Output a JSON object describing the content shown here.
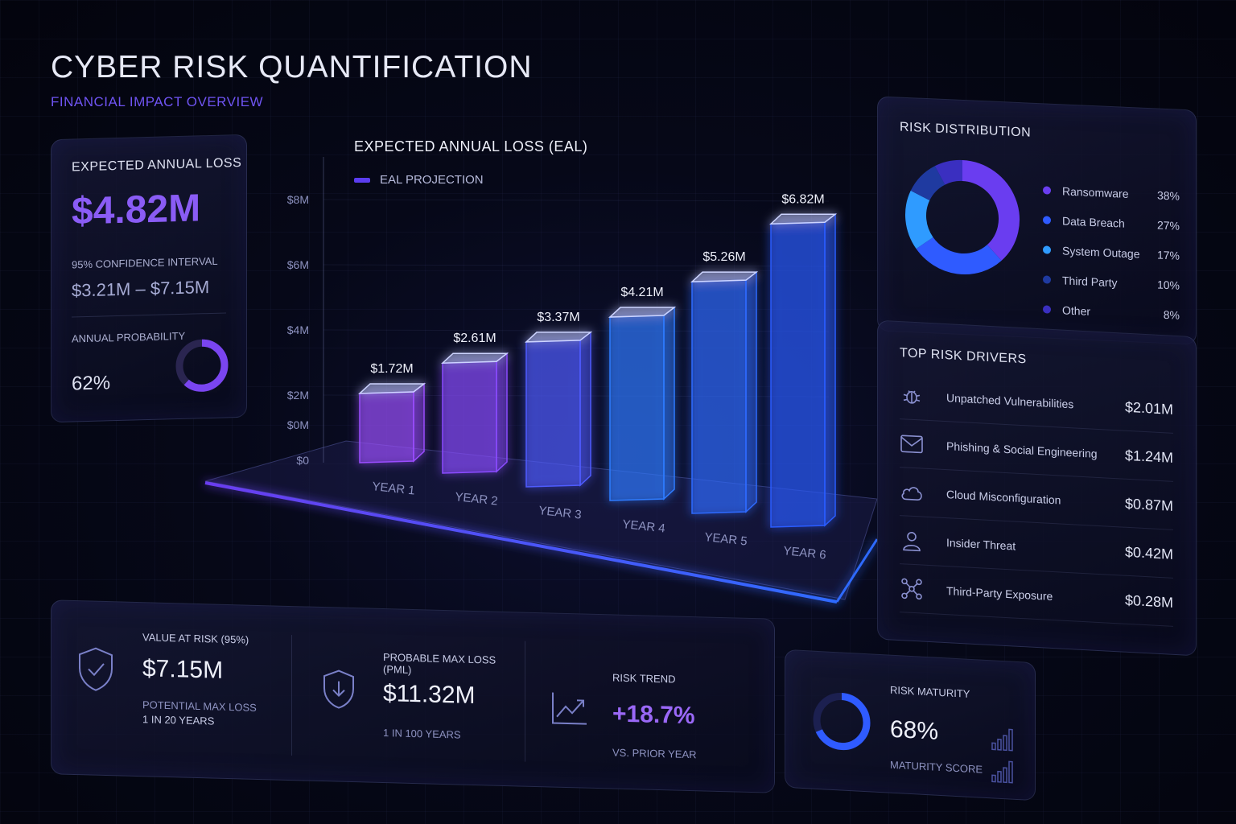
{
  "header": {
    "title": "CYBER RISK QUANTIFICATION",
    "subtitle": "FINANCIAL IMPACT OVERVIEW"
  },
  "colors": {
    "accent_purple": "#8a5cf5",
    "accent_blue": "#2f6bff",
    "accent_cyan": "#35a9ff",
    "background": "#060818"
  },
  "eal_card": {
    "label": "EXPECTED ANNUAL LOSS",
    "value": "$4.82M",
    "ci_label": "95% CONFIDENCE INTERVAL",
    "ci_value": "$3.21M – $7.15M",
    "probability_label": "ANNUAL PROBABILITY",
    "probability_value": "62%",
    "probability": 0.62
  },
  "chart_data": {
    "type": "bar",
    "title": "EXPECTED ANNUAL LOSS (EAL)",
    "series": [
      {
        "name": "EAL PROJECTION",
        "values": [
          1.72,
          2.61,
          3.37,
          4.21,
          5.26,
          6.82
        ]
      }
    ],
    "categories": [
      "YEAR 1",
      "YEAR 2",
      "YEAR 3",
      "YEAR 4",
      "YEAR 5",
      "YEAR 6"
    ],
    "data_labels": [
      "$1.72M",
      "$2.61M",
      "$3.37M",
      "$4.21M",
      "$5.26M",
      "$6.82M"
    ],
    "y_ticks": [
      "$0",
      "$0M",
      "$2M",
      "$4M",
      "$6M",
      "$8M"
    ],
    "y_tick_values": [
      0,
      0,
      2,
      4,
      6,
      8
    ],
    "ylim": [
      0,
      8
    ],
    "unit": "$M",
    "colors": [
      "#9b4dff",
      "#8a4bff",
      "#4f5bff",
      "#2f7bff",
      "#2f6bff",
      "#2a5cff"
    ]
  },
  "risk_distribution": {
    "label": "RISK DISTRIBUTION",
    "items": [
      {
        "name": "Ransomware",
        "pct": "38%",
        "value": 38,
        "color": "#6a3df0"
      },
      {
        "name": "Data Breach",
        "pct": "27%",
        "value": 27,
        "color": "#2f5bff"
      },
      {
        "name": "System Outage",
        "pct": "17%",
        "value": 17,
        "color": "#2f9bff"
      },
      {
        "name": "Third Party",
        "pct": "10%",
        "value": 10,
        "color": "#1f3aa0"
      },
      {
        "name": "Other",
        "pct": "8%",
        "value": 8,
        "color": "#3a2fc0"
      }
    ]
  },
  "risk_drivers": {
    "label": "TOP RISK DRIVERS",
    "items": [
      {
        "name": "Unpatched Vulnerabilities",
        "value": "$2.01M",
        "icon": "bug-icon"
      },
      {
        "name": "Phishing & Social Engineering",
        "value": "$1.24M",
        "icon": "mail-icon"
      },
      {
        "name": "Cloud Misconfiguration",
        "value": "$0.87M",
        "icon": "cloud-icon"
      },
      {
        "name": "Insider Threat",
        "value": "$0.42M",
        "icon": "user-icon"
      },
      {
        "name": "Third-Party Exposure",
        "value": "$0.28M",
        "icon": "network-icon"
      }
    ]
  },
  "stats": {
    "var": {
      "label": "VALUE AT RISK (95%)",
      "value": "$7.15M",
      "sub1": "POTENTIAL MAX LOSS",
      "sub2": "1 IN 20 YEARS",
      "icon": "shield-check-icon"
    },
    "pml": {
      "label": "PROBABLE MAX LOSS (PML)",
      "value": "$11.32M",
      "sub1": "1 IN 100 YEARS",
      "icon": "shield-down-icon"
    },
    "trend": {
      "label": "RISK TREND",
      "value": "+18.7%",
      "sub1": "VS. PRIOR YEAR",
      "icon": "trend-up-icon"
    }
  },
  "maturity": {
    "label": "RISK MATURITY",
    "value": "68%",
    "sub": "MATURITY SCORE",
    "score": 0.68
  }
}
